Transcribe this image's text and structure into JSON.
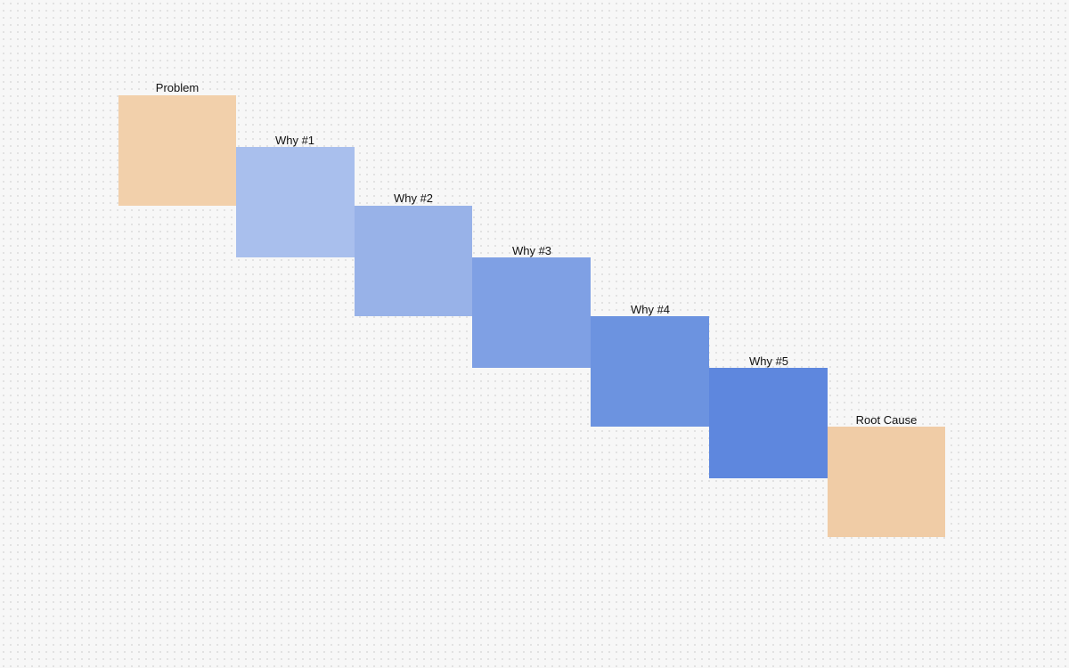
{
  "nodes": [
    {
      "label": "Problem"
    },
    {
      "label": "Why #1"
    },
    {
      "label": "Why #2"
    },
    {
      "label": "Why #3"
    },
    {
      "label": "Why #4"
    },
    {
      "label": "Why #5"
    },
    {
      "label": "Root Cause"
    }
  ]
}
